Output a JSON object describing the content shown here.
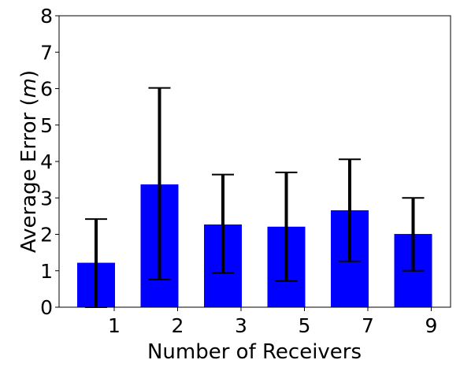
{
  "chart_data": {
    "type": "bar",
    "categories": [
      "1",
      "2",
      "3",
      "5",
      "7",
      "9"
    ],
    "values": [
      1.22,
      3.37,
      2.27,
      2.21,
      2.66,
      2.01
    ],
    "error_low": [
      0.0,
      0.76,
      0.94,
      0.72,
      1.26,
      1.0
    ],
    "error_high": [
      2.42,
      6.02,
      3.64,
      3.7,
      4.06,
      3.0
    ],
    "title": "",
    "xlabel": "Number of Receivers",
    "ylabel_prefix": "Average Error (",
    "ylabel_unit": "m",
    "ylabel_suffix": ")",
    "ylim": [
      0,
      8
    ],
    "yticks": [
      "0",
      "1",
      "2",
      "3",
      "4",
      "5",
      "6",
      "7",
      "8"
    ],
    "bar_color": "#0000ff",
    "error_color": "#000000",
    "grid": false
  }
}
